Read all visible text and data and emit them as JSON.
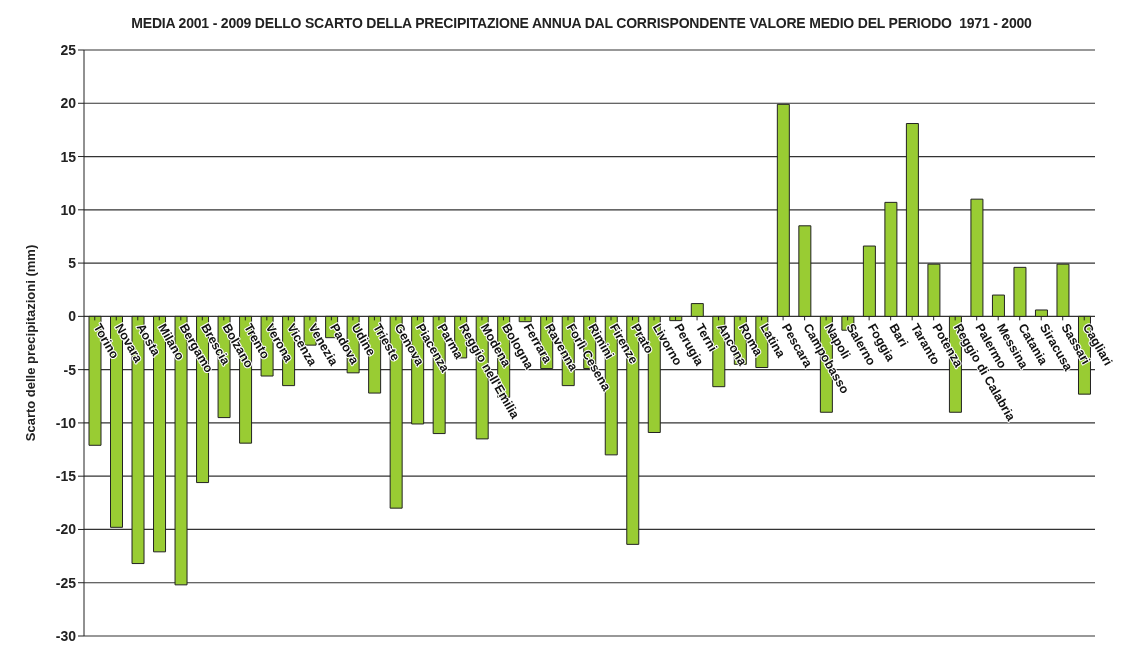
{
  "chart_data": {
    "type": "bar",
    "title": "MEDIA 2001 - 2009 DELLO SCARTO DELLA PRECIPITAZIONE ANNUA DAL CORRISPONDENTE VALORE MEDIO DEL PERIODO  1971 - 2000",
    "ylabel": "Scarto delle precipitazioni (mm)",
    "categories": [
      "Torino",
      "Novara",
      "Aosta",
      "Milano",
      "Bergamo",
      "Brescia",
      "Bolzano",
      "Trento",
      "Verona",
      "Vicenza",
      "Venezia",
      "Padova",
      "Udine",
      "Trieste",
      "Genova",
      "Piacenza",
      "Parma",
      "Reggio nell'Emilia",
      "Modena",
      "Bologna",
      "Ferrara",
      "Ravenna",
      "Forlì Cesena",
      "Rimini",
      "Firenze",
      "Prato",
      "Livorno",
      "Perugia",
      "Terni",
      "Ancona",
      "Roma",
      "Latina",
      "Pescara",
      "Campobasso",
      "Napoli",
      "Salerno",
      "Foggia",
      "Bari",
      "Taranto",
      "Potenza",
      "Reggio di Calabria",
      "Palermo",
      "Messina",
      "Catania",
      "Siracusa",
      "Sassari",
      "Cagliari"
    ],
    "values": [
      -12.1,
      -19.8,
      -23.2,
      -22.1,
      -25.2,
      -15.6,
      -9.5,
      -11.9,
      -5.6,
      -6.5,
      -2.7,
      -2.0,
      -5.3,
      -7.2,
      -18.0,
      -10.1,
      -11.0,
      -3.9,
      -11.5,
      -7.6,
      -0.5,
      -4.9,
      -6.5,
      -4.9,
      -13.0,
      -21.4,
      -10.9,
      -0.4,
      1.2,
      -6.6,
      -4.5,
      -4.8,
      19.9,
      8.5,
      -9.0,
      -1.3,
      6.6,
      10.7,
      18.1,
      4.9,
      -9.0,
      11.0,
      2.0,
      4.6,
      0.6,
      4.9,
      -7.3
    ],
    "color": "#99cc33",
    "ylim": [
      -30,
      25
    ],
    "yticks": [
      -30,
      -25,
      -20,
      -15,
      -10,
      -5,
      0,
      5,
      10,
      15,
      20,
      25
    ],
    "grid": "y"
  }
}
